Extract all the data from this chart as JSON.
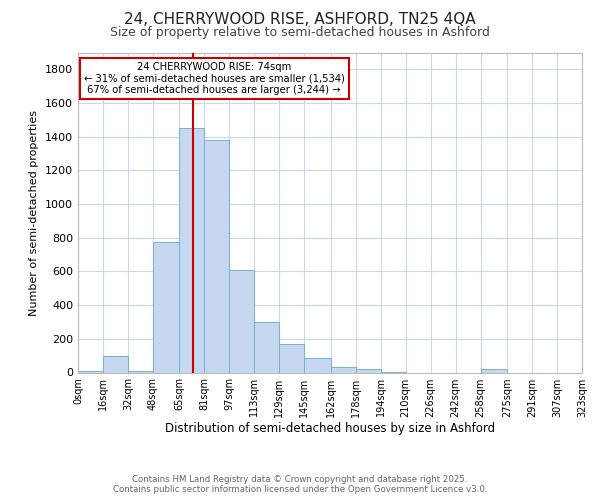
{
  "title_line1": "24, CHERRYWOOD RISE, ASHFORD, TN25 4QA",
  "title_line2": "Size of property relative to semi-detached houses in Ashford",
  "xlabel": "Distribution of semi-detached houses by size in Ashford",
  "ylabel": "Number of semi-detached properties",
  "bin_edges": [
    0,
    16,
    32,
    48,
    65,
    81,
    97,
    113,
    129,
    145,
    162,
    178,
    194,
    210,
    226,
    242,
    258,
    275,
    291,
    307,
    323
  ],
  "bin_labels": [
    "0sqm",
    "16sqm",
    "32sqm",
    "48sqm",
    "65sqm",
    "81sqm",
    "97sqm",
    "113sqm",
    "129sqm",
    "145sqm",
    "162sqm",
    "178sqm",
    "194sqm",
    "210sqm",
    "226sqm",
    "242sqm",
    "258sqm",
    "275sqm",
    "291sqm",
    "307sqm",
    "323sqm"
  ],
  "bar_heights": [
    10,
    100,
    10,
    775,
    1450,
    1380,
    610,
    300,
    170,
    85,
    30,
    20,
    5,
    0,
    0,
    0,
    20,
    0,
    0,
    0
  ],
  "bar_color": "#c5d8f0",
  "bar_edge_color": "#7aafd4",
  "property_size": 74,
  "annotation_title": "24 CHERRYWOOD RISE: 74sqm",
  "annotation_line2": "← 31% of semi-detached houses are smaller (1,534)",
  "annotation_line3": "67% of semi-detached houses are larger (3,244) →",
  "annotation_box_color": "#ffffff",
  "annotation_box_edge": "#cc0000",
  "vline_color": "#cc0000",
  "ylim": [
    0,
    1900
  ],
  "background_color": "#ffffff",
  "grid_color": "#c8d8ee",
  "footer_line1": "Contains HM Land Registry data © Crown copyright and database right 2025.",
  "footer_line2": "Contains public sector information licensed under the Open Government Licence v3.0."
}
